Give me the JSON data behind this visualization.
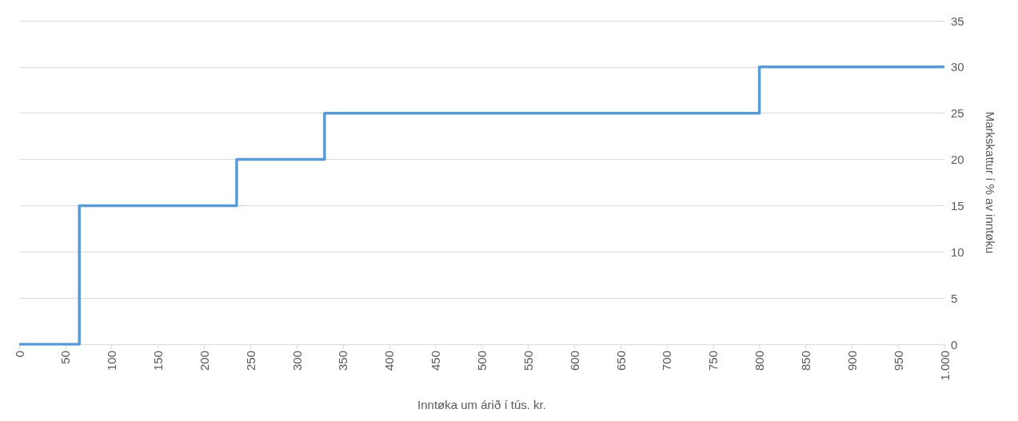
{
  "chart_data": {
    "type": "step",
    "xlabel": "Inntøka um árið í tús. kr.",
    "ylabel": "Markskattur í % av inntøku",
    "x": [
      0,
      65,
      235,
      330,
      800,
      1000
    ],
    "series": [
      {
        "color": "#5b9bd5",
        "values": [
          0,
          15,
          20,
          25,
          30,
          30
        ]
      }
    ],
    "xlim": [
      0,
      1000
    ],
    "xticks": [
      0,
      50,
      100,
      150,
      200,
      250,
      300,
      350,
      400,
      450,
      500,
      550,
      600,
      650,
      700,
      750,
      800,
      850,
      900,
      950,
      {
        "value": 1000,
        "label": "1.000"
      }
    ],
    "ylim": [
      0,
      35
    ],
    "yticks": [
      0,
      5,
      10,
      15,
      20,
      25,
      30,
      35
    ],
    "grid": "y",
    "marker": "none",
    "line_style": "solid"
  }
}
